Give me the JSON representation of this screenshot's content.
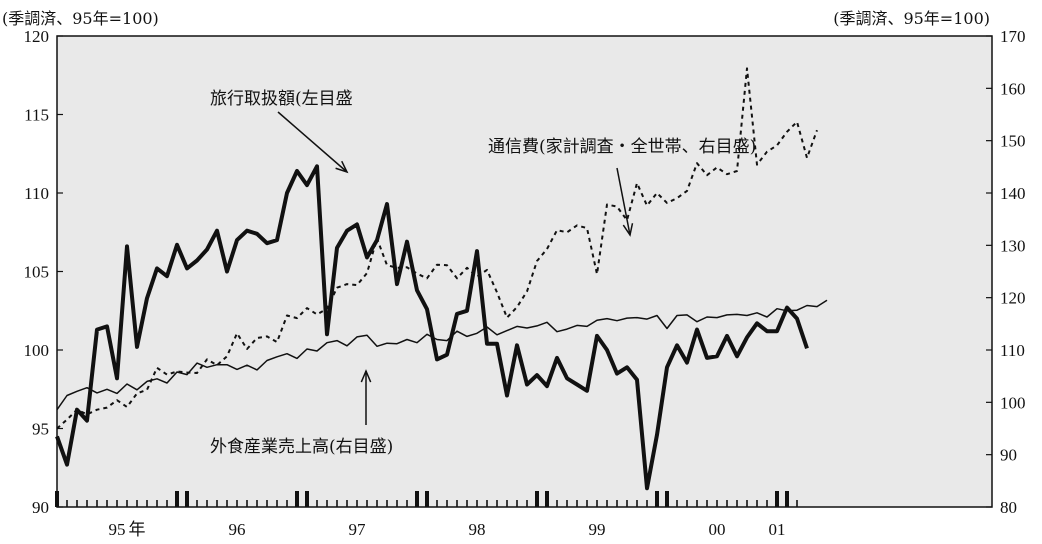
{
  "chart_data": {
    "type": "line",
    "title": "",
    "left_unit": "(季調済、95年=100)",
    "right_unit": "(季調済、95年=100)",
    "y_left": {
      "range": [
        90,
        120
      ],
      "ticks": [
        "90",
        "95",
        "100",
        "105",
        "110",
        "115",
        "120"
      ]
    },
    "y_right": {
      "range": [
        80,
        170
      ],
      "ticks": [
        "80",
        "90",
        "100",
        "110",
        "120",
        "130",
        "140",
        "150",
        "160",
        "170"
      ]
    },
    "x_axis": {
      "start": "1995-01",
      "end": "2001-01",
      "year_labels": [
        {
          "label": "95",
          "month": "1995-07"
        },
        {
          "label": "年",
          "month": "1995-09"
        },
        {
          "label": "96",
          "month": "1996-07"
        },
        {
          "label": "97",
          "month": "1997-07"
        },
        {
          "label": "98",
          "month": "1998-07"
        },
        {
          "label": "99",
          "month": "1999-07"
        },
        {
          "label": "00",
          "month": "2000-07"
        },
        {
          "label": "01",
          "month": "2001-01"
        }
      ],
      "marked_months": [
        "1995-01",
        "1996-01",
        "1996-02",
        "1997-01",
        "1997-02",
        "1998-01",
        "1998-02",
        "1999-01",
        "1999-02",
        "2000-01",
        "2000-02",
        "2001-01",
        "2001-02"
      ]
    },
    "series": [
      {
        "name": "旅行取扱額(左目盛",
        "axis": "left",
        "style": "thick",
        "values": [
          94.5,
          92.7,
          96.2,
          95.5,
          101.3,
          101.5,
          98.2,
          106.6,
          100.2,
          103.3,
          105.2,
          104.7,
          106.7,
          105.2,
          105.7,
          106.4,
          107.6,
          105.0,
          107.0,
          107.6,
          107.4,
          106.8,
          107.0,
          110.0,
          111.4,
          110.5,
          111.7,
          101.0,
          106.5,
          107.6,
          108.0,
          105.9,
          107.0,
          109.3,
          104.2,
          106.9,
          103.8,
          102.6,
          99.4,
          99.7,
          102.3,
          102.5,
          106.3,
          100.4,
          100.4,
          97.1,
          100.3,
          97.8,
          98.4,
          97.7,
          99.5,
          98.2,
          97.8,
          97.4,
          100.9,
          100.0,
          98.5,
          98.9,
          98.1,
          91.2,
          94.6,
          98.9,
          100.3,
          99.2,
          101.3,
          99.5,
          99.6,
          100.9,
          99.6,
          100.8,
          101.7,
          101.2,
          101.2,
          102.7,
          102.0,
          100.1
        ]
      },
      {
        "name": "通信費(家計調査・全世帯、右目盛)",
        "axis": "right",
        "style": "dotted",
        "values": [
          95.0,
          96.7,
          98.6,
          97.7,
          98.6,
          99.0,
          100.4,
          99.1,
          101.7,
          102.4,
          106.6,
          105.3,
          105.9,
          105.7,
          105.6,
          108.2,
          107.1,
          108.8,
          113.2,
          110.2,
          112.3,
          112.6,
          111.5,
          116.6,
          116.1,
          118.0,
          116.8,
          117.9,
          121.9,
          122.6,
          122.4,
          124.7,
          131.3,
          126.2,
          125.7,
          125.8,
          124.6,
          123.7,
          126.3,
          126.2,
          123.7,
          125.7,
          124.0,
          125.3,
          121.0,
          116.2,
          118.2,
          121.2,
          127.0,
          129.3,
          132.9,
          132.5,
          133.8,
          133.3,
          124.5,
          137.8,
          137.4,
          134.8,
          141.9,
          137.6,
          140.0,
          138.1,
          139.0,
          140.4,
          145.7,
          143.4,
          144.9,
          143.6,
          144.2,
          163.8,
          145.4,
          147.9,
          149.1,
          151.7,
          153.6,
          146.7,
          152.0
        ]
      },
      {
        "name": "外食産業売上高(右目盛)",
        "axis": "right",
        "style": "thin",
        "values": [
          98.6,
          101.3,
          102.1,
          102.8,
          101.8,
          102.5,
          101.7,
          103.5,
          102.4,
          104.0,
          104.5,
          103.7,
          105.8,
          105.3,
          107.5,
          106.7,
          107.2,
          107.2,
          106.3,
          107.1,
          106.2,
          108.0,
          108.7,
          109.3,
          108.4,
          110.2,
          109.8,
          111.4,
          111.8,
          110.8,
          112.5,
          112.8,
          110.7,
          111.3,
          111.2,
          112.0,
          111.4,
          113.0,
          112.0,
          111.8,
          113.6,
          112.6,
          113.2,
          114.4,
          112.9,
          113.7,
          114.5,
          114.2,
          114.6,
          115.3,
          113.5,
          114.0,
          114.7,
          114.5,
          115.7,
          116.0,
          115.6,
          116.1,
          116.2,
          115.9,
          116.6,
          114.1,
          116.6,
          116.7,
          115.4,
          116.3,
          116.2,
          116.7,
          116.8,
          116.6,
          117.1,
          116.3,
          117.9,
          117.5,
          117.6,
          118.5,
          118.3,
          119.5
        ]
      }
    ],
    "annotations": [
      {
        "id": "travel",
        "text": "旅行取扱額(左目盛"
      },
      {
        "id": "comm",
        "text": "通信費(家計調査・全世帯、右目盛)"
      },
      {
        "id": "dining",
        "text": "外食産業売上高(右目盛)"
      }
    ],
    "colors": {
      "background": "#e9e9e9",
      "line": "#111111"
    }
  }
}
